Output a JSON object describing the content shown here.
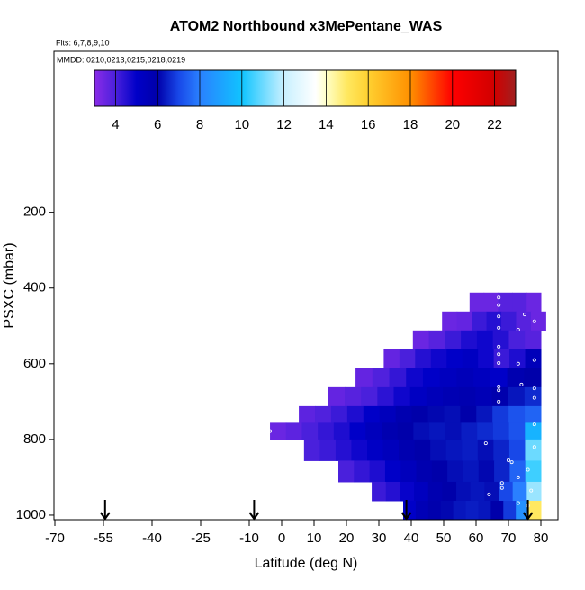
{
  "chart_data": {
    "type": "curtain",
    "title": "ATOM2 Northbound x3MePentane_WAS",
    "subtitle": "Flts: 6,7,8,9,10",
    "annotation": "MMDD: 0210,0213,0215,0218,0219",
    "x_label": "Latitude (deg N)",
    "y_label": "PSXC (mbar)",
    "xlim": [
      -70,
      85
    ],
    "xticks": [
      -70,
      -55,
      -40,
      -25,
      -10,
      0,
      10,
      20,
      30,
      40,
      50,
      60,
      70,
      80
    ],
    "ylim": [
      1012,
      -225
    ],
    "yticks": [
      200,
      400,
      600,
      800,
      1000
    ],
    "colorbar": {
      "range": [
        3,
        23
      ],
      "ticks": [
        4,
        6,
        8,
        10,
        12,
        14,
        16,
        18,
        20,
        22
      ],
      "colorscale": [
        [
          3,
          "#8a2be8"
        ],
        [
          4,
          "#4a20dc"
        ],
        [
          5,
          "#0000c8"
        ],
        [
          6,
          "#0000aa"
        ],
        [
          7,
          "#1848e8"
        ],
        [
          8,
          "#2a80ff"
        ],
        [
          10,
          "#10c4ff"
        ],
        [
          12,
          "#c8f0ff"
        ],
        [
          13.5,
          "#ffffff"
        ],
        [
          14,
          "#ffffc8"
        ],
        [
          15,
          "#ffe860"
        ],
        [
          16,
          "#ffd030"
        ],
        [
          18,
          "#ff9000"
        ],
        [
          20,
          "#ff0000"
        ],
        [
          22,
          "#d00000"
        ],
        [
          23,
          "#a02020"
        ]
      ]
    },
    "pressure_edges": [
      412,
      462,
      512,
      562,
      612,
      662,
      712,
      756,
      800,
      856,
      912,
      962,
      1012
    ],
    "rows": [
      {
        "lat": [
          58,
          80
        ],
        "values": [
          3.5,
          3.5,
          3.8,
          3.8,
          3.5
        ]
      },
      {
        "lat": [
          49.5,
          81.5
        ],
        "values": [
          3.5,
          3.6,
          4.2,
          4.5,
          4.2,
          3.8,
          3.5
        ]
      },
      {
        "lat": [
          40.5,
          80
        ],
        "values": [
          3.5,
          3.8,
          4.2,
          4.6,
          4.8,
          4.5,
          4.0,
          3.8
        ]
      },
      {
        "lat": [
          31.5,
          80
        ],
        "values": [
          3.6,
          4.0,
          4.5,
          4.8,
          5.0,
          5.2,
          4.8,
          4.2,
          4.6,
          5.5
        ]
      },
      {
        "lat": [
          22.8,
          80
        ],
        "values": [
          3.6,
          3.9,
          4.3,
          4.8,
          5.0,
          5.3,
          5.5,
          5.3,
          5.0,
          5.8,
          6
        ]
      },
      {
        "lat": [
          14.4,
          80
        ],
        "values": [
          3.6,
          3.8,
          4.0,
          4.4,
          4.8,
          5.2,
          5.5,
          5.7,
          5.8,
          5.6,
          5.9,
          6.3,
          6.6
        ]
      },
      {
        "lat": [
          5.3,
          80
        ],
        "values": [
          3.7,
          3.9,
          4.2,
          4.6,
          5.0,
          5.4,
          5.8,
          6.0,
          6.1,
          6.2,
          6.0,
          6.3,
          6.8,
          7.2,
          7.5
        ]
      },
      {
        "lat": [
          -3.6,
          80
        ],
        "values": [
          3.5,
          3.7,
          4.0,
          4.3,
          4.6,
          5.0,
          5.4,
          5.8,
          6.0,
          6.2,
          6.3,
          6.2,
          6.4,
          6.6,
          6.8,
          7.2,
          9.5
        ]
      },
      {
        "lat": [
          6.9,
          80
        ],
        "values": [
          4.0,
          4.2,
          4.5,
          4.8,
          5.1,
          5.4,
          5.8,
          6.0,
          6.2,
          6.3,
          6.4,
          6.2,
          6.5,
          7.0,
          11
        ]
      },
      {
        "lat": [
          17.5,
          80
        ],
        "values": [
          4.0,
          4.3,
          4.6,
          5.0,
          5.4,
          5.8,
          6.0,
          6.2,
          6.3,
          6.1,
          6.5,
          7.5,
          10.5
        ]
      },
      {
        "lat": [
          27.8,
          80
        ],
        "values": [
          4.2,
          4.5,
          4.9,
          5.3,
          5.8,
          6.0,
          6.2,
          6.3,
          6.2,
          7.0,
          8.0,
          11.5
        ]
      },
      {
        "lat": [
          37.5,
          80
        ],
        "values": [
          5.0,
          5.6,
          5.9,
          6.1,
          6.3,
          6.4,
          6.3,
          6.0,
          6.8,
          8.5,
          15
        ]
      }
    ],
    "samples": {
      "lat": [
        67,
        67,
        75,
        78,
        67,
        67,
        73,
        67,
        67,
        67,
        73,
        78,
        67,
        67,
        74,
        78,
        78,
        67,
        78,
        63,
        70,
        71,
        76,
        68,
        73,
        77,
        64,
        68,
        73,
        76,
        -3.6,
        78
      ],
      "pressure": [
        425,
        445,
        470,
        488,
        475,
        505,
        510,
        555,
        575,
        598,
        600,
        590,
        660,
        670,
        655,
        665,
        690,
        700,
        760,
        810,
        855,
        860,
        880,
        915,
        900,
        935,
        945,
        928,
        968,
        975,
        778,
        820
      ]
    },
    "arrows_lat": [
      -54.5,
      -8.5,
      38.5,
      76
    ]
  }
}
